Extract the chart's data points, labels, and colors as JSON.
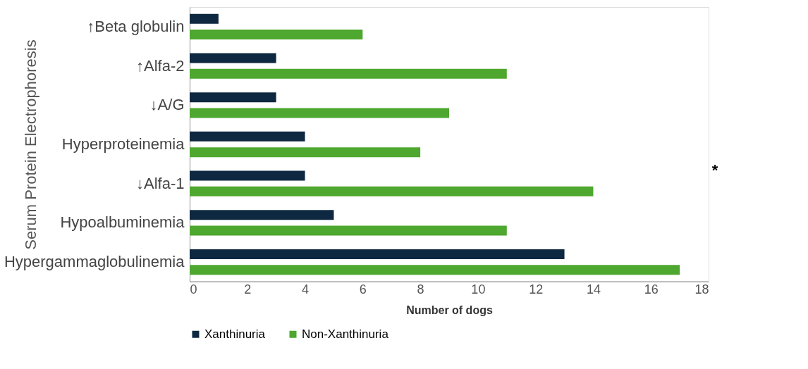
{
  "chart_data": {
    "type": "bar",
    "orientation": "horizontal",
    "ylabel": "Serum Protein Electrophoresis",
    "xlabel": "Number of dogs",
    "categories": [
      "↑Beta globulin",
      "↑Alfa-2",
      "↓A/G",
      "Hyperproteinemia",
      "↓Alfa-1",
      "Hypoalbuminemia",
      "Hypergammaglobulinemia"
    ],
    "series": [
      {
        "name": "Xanthinuria",
        "color": "#0e2841",
        "values": [
          1,
          3,
          3,
          4,
          4,
          5,
          13
        ]
      },
      {
        "name": "Non-Xanthinuria",
        "color": "#4ea72e",
        "values": [
          6,
          11,
          9,
          8,
          14,
          11,
          17
        ]
      }
    ],
    "xlim": [
      0,
      18
    ],
    "xticks": [
      0,
      2,
      4,
      6,
      8,
      10,
      12,
      14,
      16,
      18
    ],
    "grid": false,
    "legend": "bottom",
    "annotations": [
      "*"
    ]
  }
}
